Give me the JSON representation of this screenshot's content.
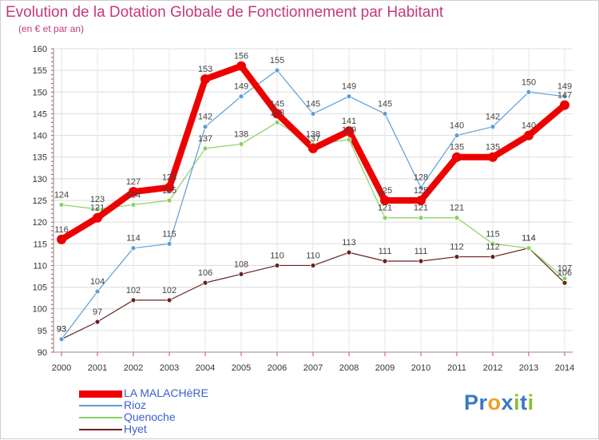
{
  "title": "Evolution de la Dotation Globale de Fonctionnement par Habitant",
  "subtitle": "(en € et par an)",
  "brand": [
    "Pr",
    "o",
    "x",
    "i",
    "t",
    "i"
  ],
  "chart_data": {
    "type": "line",
    "x": [
      "2000",
      "2001",
      "2002",
      "2003",
      "2004",
      "2005",
      "2006",
      "2007",
      "2008",
      "2009",
      "2010",
      "2011",
      "2012",
      "2013",
      "2014"
    ],
    "ylim": [
      90,
      160
    ],
    "yticks": [
      90,
      95,
      100,
      105,
      110,
      115,
      120,
      125,
      130,
      135,
      140,
      145,
      150,
      155,
      160
    ],
    "legend_position": "bottom-left",
    "series": [
      {
        "name": "LA MALACHèRE",
        "color": "#ee0000",
        "values": [
          116,
          121,
          127,
          128,
          153,
          156,
          145,
          137,
          141,
          125,
          125,
          135,
          135,
          140,
          147
        ]
      },
      {
        "name": "Rioz",
        "color": "#5a9ed6",
        "values": [
          93,
          104,
          114,
          115,
          142,
          149,
          155,
          145,
          149,
          145,
          128,
          140,
          142,
          150,
          149
        ]
      },
      {
        "name": "Quenoche",
        "color": "#88d060",
        "values": [
          124,
          123,
          124,
          125,
          137,
          138,
          143,
          138,
          139,
          121,
          121,
          121,
          115,
          114,
          107
        ]
      },
      {
        "name": "Hyet",
        "color": "#6b2020",
        "values": [
          93,
          97,
          102,
          102,
          106,
          108,
          110,
          110,
          113,
          111,
          111,
          112,
          112,
          114,
          106
        ]
      }
    ]
  }
}
